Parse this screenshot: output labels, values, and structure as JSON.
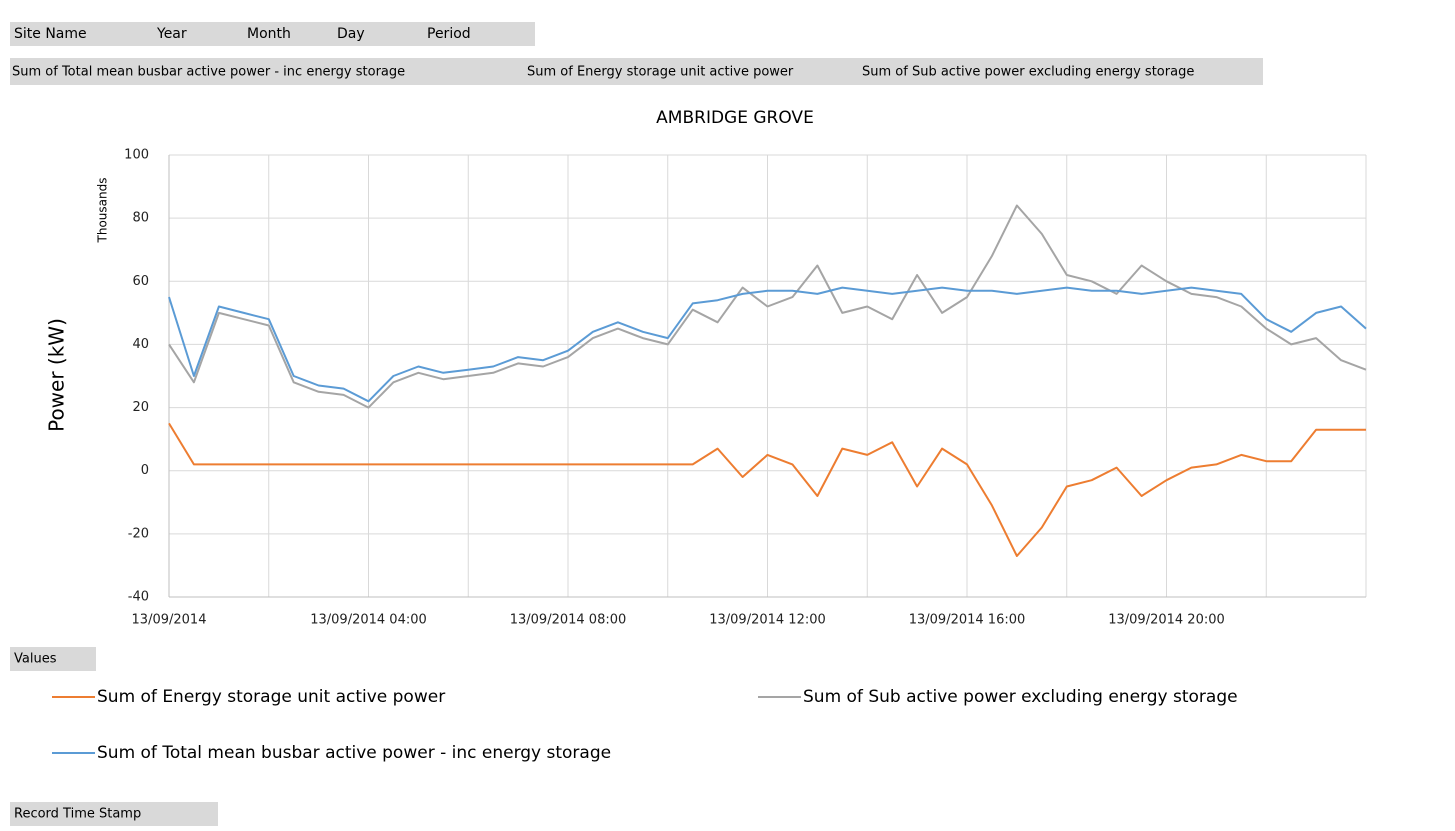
{
  "field_buttons": [
    "Site Name",
    "Year",
    "Month",
    "Day",
    "Period"
  ],
  "value_buttons": [
    "Sum of Total mean busbar active power - inc energy storage",
    "Sum of Energy storage unit active power",
    "Sum of Sub active power excluding energy storage"
  ],
  "values_button": "Values",
  "axis_button": "Record Time Stamp",
  "chart_data": {
    "type": "line",
    "title": "AMBRIDGE GROVE",
    "ylabel": "Power (kW)",
    "display_units": "Thousands",
    "x": [
      0,
      0.5,
      1,
      1.5,
      2,
      2.5,
      3,
      3.5,
      4,
      4.5,
      5,
      5.5,
      6,
      6.5,
      7,
      7.5,
      8,
      8.5,
      9,
      9.5,
      10,
      10.5,
      11,
      11.5,
      12,
      12.5,
      13,
      13.5,
      14,
      14.5,
      15,
      15.5,
      16,
      16.5,
      17,
      17.5,
      18,
      18.5,
      19,
      19.5,
      20,
      20.5,
      21,
      21.5,
      22,
      22.5,
      23,
      23.5,
      24
    ],
    "xlim": [
      0,
      24
    ],
    "xticks": [
      {
        "value": 0,
        "label": "13/09/2014"
      },
      {
        "value": 2,
        "label": null
      },
      {
        "value": 4,
        "label": "13/09/2014 04:00"
      },
      {
        "value": 6,
        "label": null
      },
      {
        "value": 8,
        "label": "13/09/2014 08:00"
      },
      {
        "value": 10,
        "label": null
      },
      {
        "value": 12,
        "label": "13/09/2014 12:00"
      },
      {
        "value": 14,
        "label": null
      },
      {
        "value": 16,
        "label": "13/09/2014 16:00"
      },
      {
        "value": 18,
        "label": null
      },
      {
        "value": 20,
        "label": "13/09/2014 20:00"
      },
      {
        "value": 22,
        "label": null
      },
      {
        "value": 24,
        "label": null
      }
    ],
    "ylim": [
      -40,
      100
    ],
    "yticks": [
      -40,
      -20,
      0,
      20,
      40,
      60,
      80,
      100
    ],
    "grid": true,
    "series": [
      {
        "name": "Sum of Energy storage unit active power",
        "color": "#ed7d31",
        "values": [
          15,
          2,
          2,
          2,
          2,
          2,
          2,
          2,
          2,
          2,
          2,
          2,
          2,
          2,
          2,
          2,
          2,
          2,
          2,
          2,
          2,
          2,
          7,
          -2,
          5,
          2,
          -8,
          7,
          5,
          9,
          -5,
          7,
          2,
          -11,
          -27,
          -18,
          -5,
          -3,
          1,
          -8,
          -3,
          1,
          2,
          5,
          3,
          3,
          13,
          13,
          13
        ]
      },
      {
        "name": "Sum of Sub active power excluding energy storage",
        "color": "#a5a5a5",
        "values": [
          40,
          28,
          50,
          48,
          46,
          28,
          25,
          24,
          20,
          28,
          31,
          29,
          30,
          31,
          34,
          33,
          36,
          42,
          45,
          42,
          40,
          51,
          47,
          58,
          52,
          55,
          65,
          50,
          52,
          48,
          62,
          50,
          55,
          68,
          84,
          75,
          62,
          60,
          56,
          65,
          60,
          56,
          55,
          52,
          45,
          40,
          42,
          35,
          32
        ]
      },
      {
        "name": "Sum of Total mean busbar active power - inc energy storage",
        "color": "#5b9bd5",
        "values": [
          55,
          30,
          52,
          50,
          48,
          30,
          27,
          26,
          22,
          30,
          33,
          31,
          32,
          33,
          36,
          35,
          38,
          44,
          47,
          44,
          42,
          53,
          54,
          56,
          57,
          57,
          56,
          58,
          57,
          56,
          57,
          58,
          57,
          57,
          56,
          57,
          58,
          57,
          57,
          56,
          57,
          58,
          57,
          56,
          48,
          44,
          50,
          52,
          45
        ]
      }
    ]
  }
}
